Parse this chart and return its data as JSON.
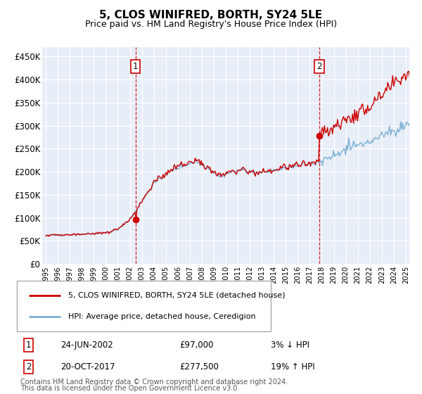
{
  "title": "5, CLOS WINIFRED, BORTH, SY24 5LE",
  "subtitle": "Price paid vs. HM Land Registry's House Price Index (HPI)",
  "ylabel_ticks": [
    "£0",
    "£50K",
    "£100K",
    "£150K",
    "£200K",
    "£250K",
    "£300K",
    "£350K",
    "£400K",
    "£450K"
  ],
  "ytick_values": [
    0,
    50000,
    100000,
    150000,
    200000,
    250000,
    300000,
    350000,
    400000,
    450000
  ],
  "ylim": [
    0,
    470000
  ],
  "xlim_start": 1994.7,
  "xlim_end": 2025.3,
  "background_color": "#e8eef8",
  "grid_color": "#ffffff",
  "hpi_line_color": "#7ab0d4",
  "price_line_color": "#cc0000",
  "sale1_date": 2002.48,
  "sale1_price": 97000,
  "sale2_date": 2017.8,
  "sale2_price": 277500,
  "legend_label1": "5, CLOS WINIFRED, BORTH, SY24 5LE (detached house)",
  "legend_label2": "HPI: Average price, detached house, Ceredigion",
  "table_row1": [
    "1",
    "24-JUN-2002",
    "£97,000",
    "3% ↓ HPI"
  ],
  "table_row2": [
    "2",
    "20-OCT-2017",
    "£277,500",
    "19% ↑ HPI"
  ],
  "footer1": "Contains HM Land Registry data © Crown copyright and database right 2024.",
  "footer2": "This data is licensed under the Open Government Licence v3.0.",
  "xtick_years": [
    1995,
    1996,
    1997,
    1998,
    1999,
    2000,
    2001,
    2002,
    2003,
    2004,
    2005,
    2006,
    2007,
    2008,
    2009,
    2010,
    2011,
    2012,
    2013,
    2014,
    2015,
    2016,
    2017,
    2018,
    2019,
    2020,
    2021,
    2022,
    2023,
    2024,
    2025
  ]
}
